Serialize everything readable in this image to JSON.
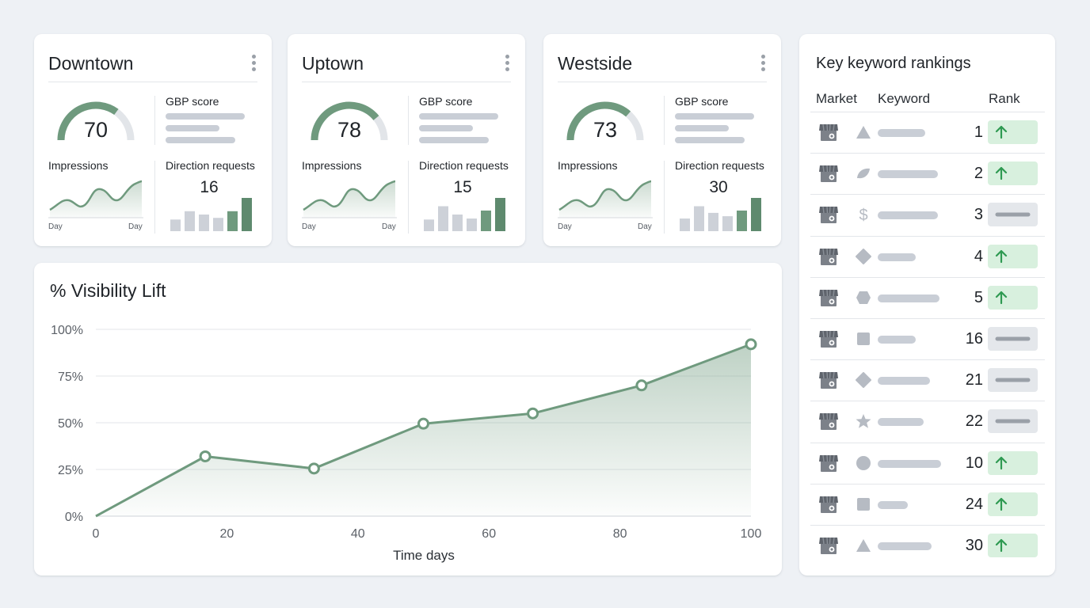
{
  "locations": [
    {
      "name": "Downtown",
      "gbp_label": "GBP score",
      "gbp_score": 70,
      "impressions_label": "Impressions",
      "direction_label": "Direction requests",
      "direction_requests": 16,
      "day_start": "Day",
      "day_end": "Day",
      "bars": [
        0.35,
        0.6,
        0.5,
        0.4,
        0.6,
        1.0
      ]
    },
    {
      "name": "Uptown",
      "gbp_label": "GBP score",
      "gbp_score": 78,
      "impressions_label": "Impressions",
      "direction_label": "Direction requests",
      "direction_requests": 15,
      "day_start": "Day",
      "day_end": "Day",
      "bars": [
        0.35,
        0.75,
        0.5,
        0.38,
        0.62,
        1.0
      ]
    },
    {
      "name": "Westside",
      "gbp_label": "GBP score",
      "gbp_score": 73,
      "impressions_label": "Impressions",
      "direction_label": "Direction requests",
      "direction_requests": 30,
      "day_start": "Day",
      "day_end": "Day",
      "bars": [
        0.38,
        0.75,
        0.55,
        0.45,
        0.62,
        1.0
      ]
    }
  ],
  "visibility": {
    "title": "% Visibility Lift",
    "chart_data": {
      "type": "area",
      "title": "% Visibility Lift",
      "xlabel": "Time days",
      "ylabel": "",
      "x": [
        0,
        16.7,
        33.3,
        50,
        66.7,
        83.3,
        100
      ],
      "y": [
        0,
        32,
        25.5,
        49.5,
        55,
        70,
        92
      ],
      "xlim": [
        0,
        100
      ],
      "ylim": [
        0,
        100
      ],
      "x_ticks": [
        "0",
        "20",
        "40",
        "60",
        "80",
        "100"
      ],
      "y_ticks": [
        "0%",
        "25%",
        "50%",
        "75%",
        "100%"
      ],
      "grid": true,
      "line_color": "#6f9a7e"
    }
  },
  "keywords": {
    "title": "Key keyword rankings",
    "headers": {
      "market": "Market",
      "keyword": "Keyword",
      "rank": "Rank"
    },
    "rows": [
      {
        "icon": "triangle-icon",
        "rank": "1",
        "trend": "up"
      },
      {
        "icon": "leaf-icon",
        "rank": "2",
        "trend": "up"
      },
      {
        "icon": "dollar-icon",
        "rank": "3",
        "trend": "flat"
      },
      {
        "icon": "diamond-icon",
        "rank": "4",
        "trend": "up"
      },
      {
        "icon": "hexagon-icon",
        "rank": "5",
        "trend": "up"
      },
      {
        "icon": "square-icon",
        "rank": "16",
        "trend": "flat"
      },
      {
        "icon": "diamond-icon",
        "rank": "21",
        "trend": "flat"
      },
      {
        "icon": "star-icon",
        "rank": "22",
        "trend": "flat"
      },
      {
        "icon": "circle-icon",
        "rank": "10",
        "trend": "up"
      },
      {
        "icon": "square-icon",
        "rank": "24",
        "trend": "up"
      },
      {
        "icon": "triangle-icon",
        "rank": "30",
        "trend": "up"
      }
    ]
  },
  "colors": {
    "accent": "#6f9a7e",
    "accent_dark": "#5e8a6e",
    "up_badge": "#d8f0de",
    "up_arrow": "#2f9a52",
    "flat_badge": "#e4e7eb",
    "skeleton": "#c9ced6"
  }
}
